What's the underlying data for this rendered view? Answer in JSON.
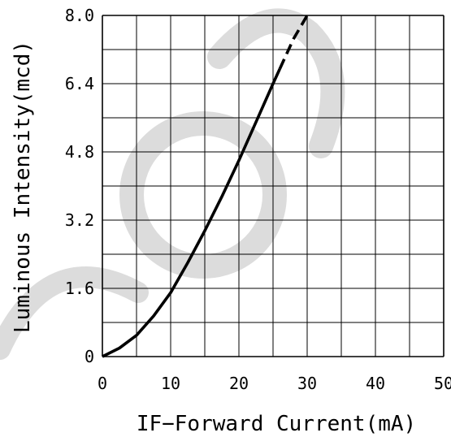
{
  "colors": {
    "curve": "#000000",
    "grid": "#000000",
    "watermark": "#dcdcdc"
  },
  "chart_data": {
    "type": "line",
    "title": "",
    "xlabel": "IF−Forward Current(mA)",
    "ylabel": "Luminous Intensity(mcd)",
    "xlim": [
      0,
      50
    ],
    "ylim": [
      0,
      8.0
    ],
    "x_ticks": [
      "0",
      "10",
      "20",
      "30",
      "40",
      "50"
    ],
    "y_ticks": [
      "0",
      "1.6",
      "3.2",
      "4.8",
      "6.4",
      "8.0"
    ],
    "x_tick_values": [
      0,
      10,
      20,
      30,
      40,
      50
    ],
    "y_tick_values": [
      0,
      1.6,
      3.2,
      4.8,
      6.4,
      8.0
    ],
    "grid": true,
    "series": [
      {
        "style": "solid",
        "x": [
          0,
          2.5,
          5,
          7.5,
          10,
          12.5,
          15,
          17.5,
          20,
          22.5,
          25,
          26
        ],
        "y": [
          0,
          0.2,
          0.5,
          0.95,
          1.5,
          2.2,
          2.95,
          3.75,
          4.6,
          5.5,
          6.4,
          6.75
        ]
      },
      {
        "style": "dashed",
        "x": [
          26,
          28,
          30
        ],
        "y": [
          6.75,
          7.45,
          8.0
        ]
      }
    ]
  }
}
